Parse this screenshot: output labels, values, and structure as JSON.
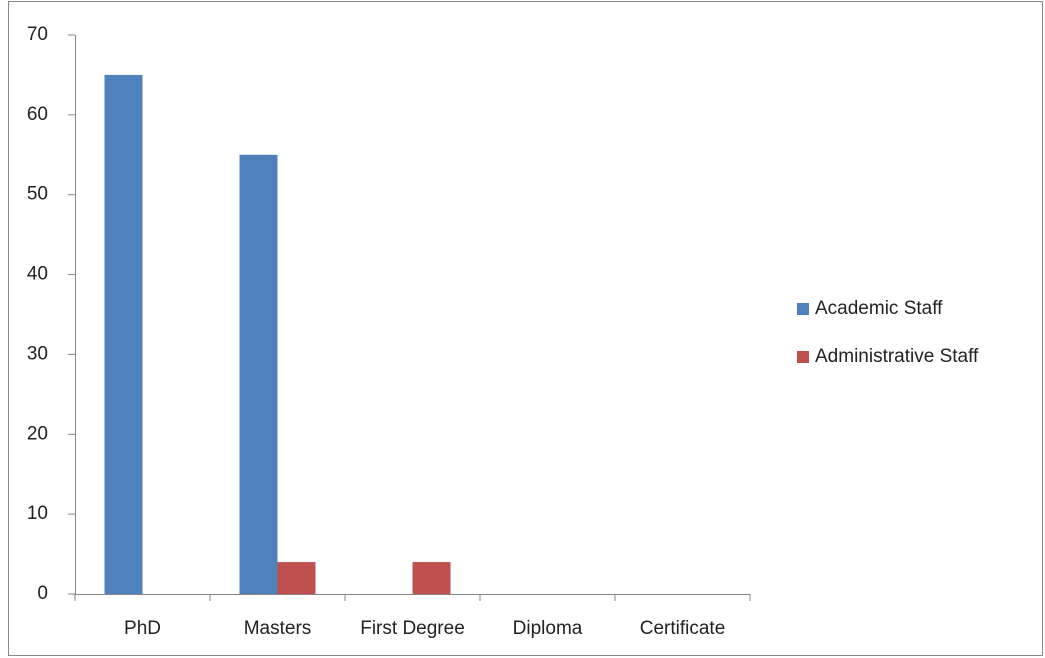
{
  "chart_data": {
    "type": "bar",
    "categories": [
      "PhD",
      "Masters",
      "First Degree",
      "Diploma",
      "Certificate"
    ],
    "series": [
      {
        "name": "Academic Staff",
        "color": "#4f81bd",
        "values": [
          65,
          55,
          0,
          0,
          0
        ]
      },
      {
        "name": "Administrative Staff",
        "color": "#c0504d",
        "values": [
          0,
          4,
          4,
          0,
          0
        ]
      }
    ],
    "ylim": [
      0,
      70
    ],
    "yticks": [
      0,
      10,
      20,
      30,
      40,
      50,
      60,
      70
    ],
    "grid": false,
    "legend": "right"
  }
}
